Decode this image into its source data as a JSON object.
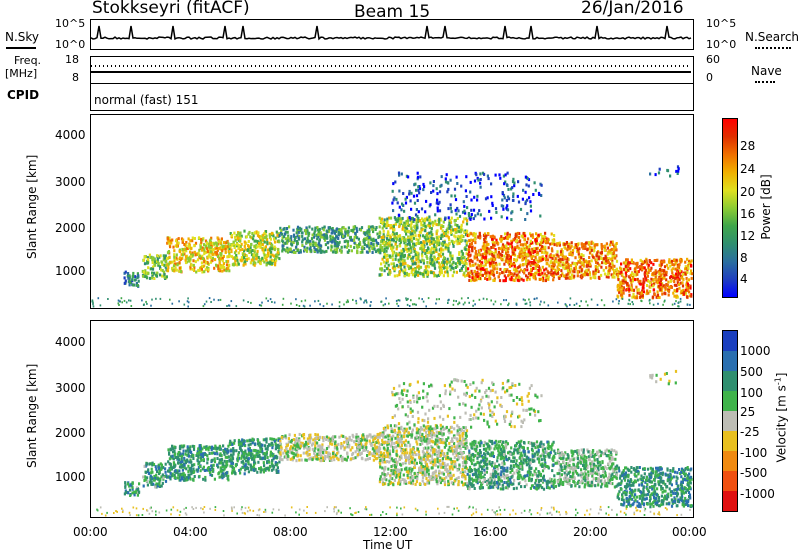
{
  "header": {
    "station": "Stokkseyri (fitACF)",
    "beam": "Beam 15",
    "date": "26/Jan/2016"
  },
  "strip": {
    "nsky_label": "N.Sky",
    "nsearch_label": "N.Search",
    "freq_label_top": "Freq.",
    "freq_label_unit": "[MHz]",
    "nave_label": "Nave",
    "cpid_label": "CPID",
    "cpid_value": "normal (fast) 151",
    "noise_ticks_left": [
      "10^5",
      "10^0"
    ],
    "noise_ticks_right": [
      "10^5",
      "10^0"
    ],
    "freq_ticks_left": [
      "18",
      "8"
    ],
    "nave_ticks_right": [
      "60",
      "0"
    ]
  },
  "power_colorbar": {
    "label": "Power [dB]",
    "ticks": [
      "28",
      "24",
      "20",
      "16",
      "12",
      "8",
      "4"
    ],
    "colors": [
      "#0000ff",
      "#1f3fbf",
      "#2a6f9f",
      "#2f8f6f",
      "#3fa64a",
      "#8ccc33",
      "#e0e020",
      "#f0b000",
      "#f07000",
      "#e03000",
      "#ff0000"
    ]
  },
  "velocity_colorbar": {
    "label_main": "Velocity",
    "label_unit": "[m s",
    "label_exp": "-1",
    "label_close": "]",
    "ticks": [
      "1000",
      "500",
      "100",
      "25",
      "-25",
      "-100",
      "-500",
      "-1000"
    ],
    "colors": [
      "#1a3fbf",
      "#2a6fb0",
      "#2f8f6f",
      "#3fb34a",
      "#bdbdb5",
      "#e8c020",
      "#f08a10",
      "#f05010",
      "#e01010"
    ]
  },
  "chart_data": [
    {
      "type": "heatmap",
      "panel": "power",
      "title": "",
      "xlabel": "",
      "ylabel": "Slant Range [km]",
      "xlim_hours": [
        0,
        24
      ],
      "ylim_km": [
        180,
        4600
      ],
      "yticks": [
        "4000",
        "3000",
        "2000",
        "1000"
      ],
      "colorbar_range_db": [
        0,
        30
      ],
      "scatter_bands": [
        {
          "t0": 1.3,
          "t1": 1.9,
          "r0": 650,
          "r1": 1000,
          "level": 0.25
        },
        {
          "t0": 2.0,
          "t1": 3.0,
          "r0": 850,
          "r1": 1400,
          "level": 0.45
        },
        {
          "t0": 3.0,
          "t1": 5.5,
          "r0": 1000,
          "r1": 1800,
          "level": 0.65
        },
        {
          "t0": 5.5,
          "t1": 7.5,
          "r0": 1150,
          "r1": 1950,
          "level": 0.55
        },
        {
          "t0": 7.5,
          "t1": 11.5,
          "r0": 1450,
          "r1": 2050,
          "level": 0.35
        },
        {
          "t0": 11.5,
          "t1": 15.0,
          "r0": 900,
          "r1": 2250,
          "level": 0.5
        },
        {
          "t0": 15.0,
          "t1": 18.5,
          "r0": 800,
          "r1": 1900,
          "level": 0.8
        },
        {
          "t0": 18.5,
          "t1": 21.0,
          "r0": 850,
          "r1": 1700,
          "level": 0.75
        },
        {
          "t0": 21.0,
          "t1": 24.0,
          "r0": 400,
          "r1": 1300,
          "level": 0.8
        },
        {
          "t0": 12.0,
          "t1": 18.0,
          "r0": 2200,
          "r1": 3300,
          "level": 0.15
        },
        {
          "t0": 22.3,
          "t1": 23.5,
          "r0": 3200,
          "r1": 3500,
          "level": 0.15
        }
      ]
    },
    {
      "type": "heatmap",
      "panel": "velocity",
      "title": "",
      "xlabel": "Time UT",
      "ylabel": "Slant Range [km]",
      "xlim_hours": [
        0,
        24
      ],
      "ylim_km": [
        180,
        4600
      ],
      "xticks": [
        "00:00",
        "04:00",
        "08:00",
        "12:00",
        "16:00",
        "20:00",
        "00:00"
      ],
      "yticks": [
        "4000",
        "3000",
        "2000",
        "1000"
      ],
      "colorbar_range_ms": [
        -1000,
        1000
      ],
      "scatter_bands": [
        {
          "t0": 1.3,
          "t1": 1.9,
          "r0": 650,
          "r1": 1000,
          "level": 0.7
        },
        {
          "t0": 2.0,
          "t1": 3.0,
          "r0": 850,
          "r1": 1400,
          "level": 0.7
        },
        {
          "t0": 3.0,
          "t1": 5.5,
          "r0": 1000,
          "r1": 1800,
          "level": 0.72
        },
        {
          "t0": 5.5,
          "t1": 7.5,
          "r0": 1150,
          "r1": 1950,
          "level": 0.72
        },
        {
          "t0": 7.5,
          "t1": 11.5,
          "r0": 1450,
          "r1": 2050,
          "level": 0.5
        },
        {
          "t0": 11.5,
          "t1": 15.0,
          "r0": 900,
          "r1": 2250,
          "level": 0.5
        },
        {
          "t0": 15.0,
          "t1": 18.5,
          "r0": 800,
          "r1": 1900,
          "level": 0.68
        },
        {
          "t0": 18.5,
          "t1": 21.0,
          "r0": 850,
          "r1": 1700,
          "level": 0.6
        },
        {
          "t0": 21.0,
          "t1": 24.0,
          "r0": 400,
          "r1": 1300,
          "level": 0.75
        },
        {
          "t0": 12.0,
          "t1": 18.0,
          "r0": 2200,
          "r1": 3300,
          "level": 0.5
        },
        {
          "t0": 22.3,
          "t1": 23.5,
          "r0": 3200,
          "r1": 3500,
          "level": 0.5
        }
      ]
    }
  ]
}
